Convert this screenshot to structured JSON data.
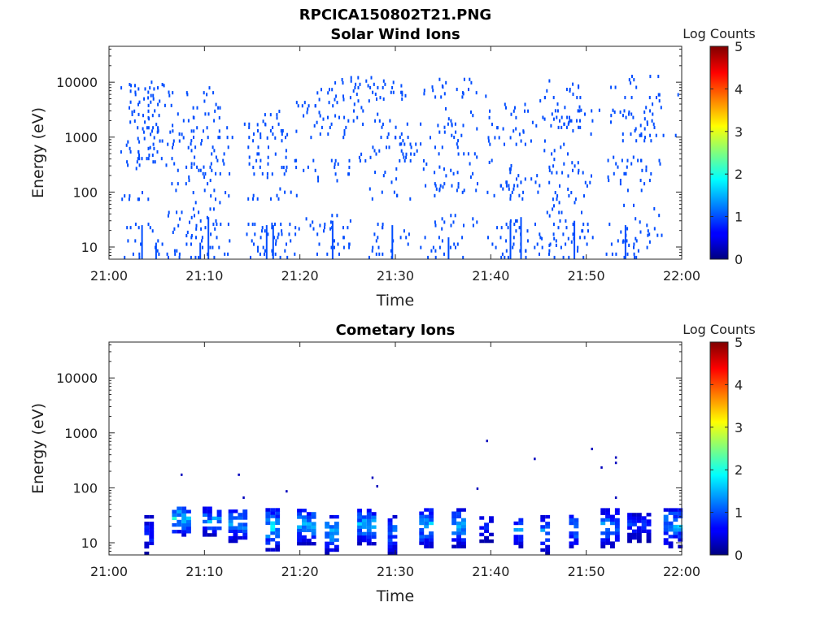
{
  "figure_title": "RPCICA150802T21.PNG",
  "colors": {
    "colormap": [
      "#00007f",
      "#0000ff",
      "#007fff",
      "#00ffff",
      "#7fff7f",
      "#ffff00",
      "#ff7f00",
      "#ff0000",
      "#7f0000"
    ],
    "axes": "#262626",
    "background": "#ffffff"
  },
  "chart_data": [
    {
      "type": "heatmap",
      "title": "Solar Wind Ions",
      "xlabel": "Time",
      "ylabel": "Energy (eV)",
      "x_ticks": [
        "21:00",
        "21:10",
        "21:20",
        "21:30",
        "21:40",
        "21:50",
        "22:00"
      ],
      "xlim": [
        "21:00",
        "22:00"
      ],
      "y_scale": "log",
      "y_ticks": [
        "10",
        "100",
        "1000",
        "10000"
      ],
      "ylim": [
        6,
        45000
      ],
      "colorbar": {
        "label": "Log Counts",
        "range": [
          0,
          5
        ],
        "ticks": [
          "0",
          "1",
          "2",
          "3",
          "4",
          "5"
        ]
      },
      "events": [
        {
          "t": 3.5,
          "bursts": [
            [
              6,
              25,
              1
            ],
            [
              60,
              100,
              1
            ],
            [
              250,
              900,
              1
            ],
            [
              1200,
              9000,
              1
            ]
          ]
        },
        {
          "t": 4.5,
          "bursts": [
            [
              6,
              12,
              1
            ],
            [
              30,
              40,
              1
            ],
            [
              250,
              600,
              1
            ],
            [
              1000,
              9500,
              1
            ]
          ]
        },
        {
          "t": 6.5,
          "bursts": [
            [
              600,
              1300,
              1
            ],
            [
              2800,
              3200,
              1
            ]
          ]
        },
        {
          "t": 9.0,
          "bursts": [
            [
              6,
              12,
              1
            ],
            [
              15,
              60,
              1
            ],
            [
              100,
              350,
              1
            ],
            [
              700,
              2500,
              1
            ],
            [
              6000,
              6500,
              1
            ]
          ]
        },
        {
          "t": 10.5,
          "bursts": [
            [
              6,
              35,
              1
            ],
            [
              60,
              100,
              1
            ],
            [
              200,
              900,
              1
            ],
            [
              1200,
              8000,
              1
            ]
          ]
        },
        {
          "t": 12.5,
          "bursts": [
            [
              800,
              1000,
              1
            ]
          ]
        },
        {
          "t": 16.5,
          "bursts": [
            [
              6,
              25,
              1
            ],
            [
              70,
              120,
              1
            ],
            [
              200,
              700,
              1
            ],
            [
              800,
              2000,
              1
            ]
          ]
        },
        {
          "t": 17.5,
          "bursts": [
            [
              6,
              25,
              1
            ],
            [
              70,
              100,
              1
            ],
            [
              150,
              500,
              1
            ],
            [
              900,
              3800,
              1
            ]
          ]
        },
        {
          "t": 22.0,
          "bursts": [
            [
              20,
              40,
              1
            ],
            [
              200,
              400,
              1
            ],
            [
              1500,
              4000,
              1
            ]
          ]
        },
        {
          "t": 23.5,
          "bursts": [
            [
              6,
              30,
              1
            ],
            [
              150,
              350,
              1
            ],
            [
              800,
              2500,
              1
            ],
            [
              4500,
              10500,
              1
            ]
          ]
        },
        {
          "t": 27.5,
          "bursts": [
            [
              300,
              600,
              1
            ],
            [
              1600,
              12500,
              1
            ]
          ]
        },
        {
          "t": 29.5,
          "bursts": [
            [
              6,
              25,
              1
            ],
            [
              70,
              250,
              1
            ],
            [
              400,
              2000,
              1
            ],
            [
              4000,
              10000,
              1
            ]
          ]
        },
        {
          "t": 31.5,
          "bursts": [
            [
              300,
              1000,
              1
            ],
            [
              5500,
              6000,
              1
            ]
          ]
        },
        {
          "t": 35.0,
          "bursts": [
            [
              6,
              15,
              1
            ],
            [
              80,
              250,
              1
            ],
            [
              400,
              2000,
              1
            ],
            [
              5000,
              8000,
              1
            ]
          ]
        },
        {
          "t": 36.5,
          "bursts": [
            [
              20,
              40,
              1
            ],
            [
              100,
              500,
              1
            ],
            [
              1000,
              3500,
              1
            ],
            [
              6000,
              10500,
              1
            ]
          ]
        },
        {
          "t": 39.5,
          "bursts": [
            [
              350,
              400,
              1
            ],
            [
              4500,
              5500,
              1
            ]
          ]
        },
        {
          "t": 42.0,
          "bursts": [
            [
              6,
              30,
              1
            ],
            [
              80,
              350,
              1
            ],
            [
              600,
              4000,
              1
            ]
          ]
        },
        {
          "t": 43.5,
          "bursts": [
            [
              6,
              35,
              1
            ],
            [
              70,
              200,
              1
            ],
            [
              1000,
              1500,
              1
            ]
          ]
        },
        {
          "t": 46.0,
          "bursts": [
            [
              600,
              800,
              1
            ],
            [
              1500,
              2000,
              1
            ]
          ]
        },
        {
          "t": 47.5,
          "bursts": [
            [
              10,
              15,
              1
            ],
            [
              30,
              100,
              1
            ],
            [
              200,
              700,
              1
            ],
            [
              1400,
              12500,
              1
            ]
          ]
        },
        {
          "t": 48.5,
          "bursts": [
            [
              6,
              30,
              1
            ],
            [
              60,
              400,
              1
            ],
            [
              800,
              3000,
              1
            ],
            [
              6000,
              8000,
              1
            ]
          ]
        },
        {
          "t": 51.0,
          "bursts": [
            [
              400,
              450,
              1
            ],
            [
              2500,
              3500,
              1
            ],
            [
              7500,
              8500,
              1
            ]
          ]
        },
        {
          "t": 54.5,
          "bursts": [
            [
              6,
              25,
              1
            ],
            [
              100,
              400,
              1
            ],
            [
              1000,
              3000,
              1
            ],
            [
              7500,
              8000,
              1
            ]
          ]
        },
        {
          "t": 56.0,
          "bursts": [
            [
              10,
              60,
              1
            ],
            [
              200,
              500,
              1
            ],
            [
              800,
              5500,
              1
            ],
            [
              9000,
              13000,
              1
            ]
          ]
        },
        {
          "t": 57.5,
          "bursts": [
            [
              1000,
              1100,
              1
            ],
            [
              5500,
              6000,
              1
            ]
          ]
        }
      ]
    },
    {
      "type": "heatmap",
      "title": "Cometary Ions",
      "xlabel": "Time",
      "ylabel": "Energy (eV)",
      "x_ticks": [
        "21:00",
        "21:10",
        "21:20",
        "21:30",
        "21:40",
        "21:50",
        "22:00"
      ],
      "xlim": [
        "21:00",
        "22:00"
      ],
      "y_scale": "log",
      "y_ticks": [
        "10",
        "100",
        "1000",
        "10000"
      ],
      "ylim": [
        6,
        45000
      ],
      "colorbar": {
        "label": "Log Counts",
        "range": [
          0,
          5
        ],
        "ticks": [
          "0",
          "1",
          "2",
          "3",
          "4",
          "5"
        ]
      },
      "events": [
        {
          "t0": 3.7,
          "t1": 4.4,
          "lo": 6,
          "hi": 28,
          "max": 1.0
        },
        {
          "t0": 6.6,
          "t1": 8.2,
          "lo": 13,
          "hi": 45,
          "max": 2.0
        },
        {
          "t0": 9.8,
          "t1": 11.7,
          "lo": 13,
          "hi": 40,
          "max": 1.6
        },
        {
          "t0": 12.5,
          "t1": 14.5,
          "lo": 10,
          "hi": 40,
          "max": 1.7
        },
        {
          "t0": 16.4,
          "t1": 17.9,
          "lo": 7,
          "hi": 38,
          "max": 1.9
        },
        {
          "t0": 19.7,
          "t1": 21.7,
          "lo": 9,
          "hi": 38,
          "max": 1.8
        },
        {
          "t0": 22.6,
          "t1": 24.1,
          "lo": 6,
          "hi": 30,
          "max": 1.7
        },
        {
          "t0": 26.0,
          "t1": 27.6,
          "lo": 9,
          "hi": 38,
          "max": 1.7
        },
        {
          "t0": 29.2,
          "t1": 30.0,
          "lo": 6,
          "hi": 28,
          "max": 1.4
        },
        {
          "t0": 32.5,
          "t1": 33.9,
          "lo": 8,
          "hi": 40,
          "max": 1.8
        },
        {
          "t0": 35.9,
          "t1": 37.1,
          "lo": 8,
          "hi": 40,
          "max": 1.6
        },
        {
          "t0": 38.8,
          "t1": 40.0,
          "lo": 10,
          "hi": 30,
          "max": 1.0
        },
        {
          "t0": 42.4,
          "t1": 43.4,
          "lo": 8,
          "hi": 28,
          "max": 1.4
        },
        {
          "t0": 45.2,
          "t1": 46.2,
          "lo": 6,
          "hi": 30,
          "max": 1.5
        },
        {
          "t0": 48.2,
          "t1": 49.2,
          "lo": 8,
          "hi": 30,
          "max": 1.6
        },
        {
          "t0": 51.5,
          "t1": 53.2,
          "lo": 8,
          "hi": 38,
          "max": 1.5
        },
        {
          "t0": 54.3,
          "t1": 56.6,
          "lo": 10,
          "hi": 35,
          "max": 1.0
        },
        {
          "t0": 58.1,
          "t1": 59.9,
          "lo": 8,
          "hi": 42,
          "max": 1.6
        }
      ],
      "scatter": [
        {
          "t": 7.5,
          "e": 170
        },
        {
          "t": 13.5,
          "e": 170
        },
        {
          "t": 14.0,
          "e": 65
        },
        {
          "t": 18.5,
          "e": 85
        },
        {
          "t": 27.5,
          "e": 150
        },
        {
          "t": 28.0,
          "e": 105
        },
        {
          "t": 38.5,
          "e": 95
        },
        {
          "t": 39.5,
          "e": 700
        },
        {
          "t": 44.5,
          "e": 330
        },
        {
          "t": 50.5,
          "e": 500
        },
        {
          "t": 51.5,
          "e": 230
        },
        {
          "t": 53.0,
          "e": 350
        },
        {
          "t": 53.0,
          "e": 280
        },
        {
          "t": 53.0,
          "e": 65
        }
      ]
    }
  ]
}
